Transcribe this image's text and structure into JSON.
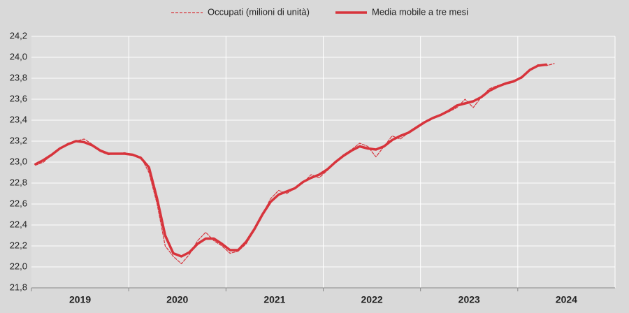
{
  "chart_data": {
    "type": "line",
    "categories": [
      "2019",
      "2020",
      "2021",
      "2022",
      "2023",
      "2024"
    ],
    "xlim": [
      2019,
      2025
    ],
    "ylim": [
      21.8,
      24.2
    ],
    "yticks": [
      {
        "value": 21.8,
        "label": "21,8"
      },
      {
        "value": 22.0,
        "label": "22,0"
      },
      {
        "value": 22.2,
        "label": "22,2"
      },
      {
        "value": 22.4,
        "label": "22,4"
      },
      {
        "value": 22.6,
        "label": "22,6"
      },
      {
        "value": 22.8,
        "label": "22,8"
      },
      {
        "value": 23.0,
        "label": "23,0"
      },
      {
        "value": 23.2,
        "label": "23,2"
      },
      {
        "value": 23.4,
        "label": "23,4"
      },
      {
        "value": 23.6,
        "label": "23,6"
      },
      {
        "value": 23.8,
        "label": "23,8"
      },
      {
        "value": 24.0,
        "label": "24,0"
      },
      {
        "value": 24.2,
        "label": "24,2"
      }
    ],
    "grid": true,
    "x": [
      2019.042,
      2019.125,
      2019.208,
      2019.292,
      2019.375,
      2019.458,
      2019.542,
      2019.625,
      2019.708,
      2019.792,
      2019.875,
      2019.958,
      2020.042,
      2020.125,
      2020.208,
      2020.292,
      2020.375,
      2020.458,
      2020.542,
      2020.625,
      2020.708,
      2020.792,
      2020.875,
      2020.958,
      2021.042,
      2021.125,
      2021.208,
      2021.292,
      2021.375,
      2021.458,
      2021.542,
      2021.625,
      2021.708,
      2021.792,
      2021.875,
      2021.958,
      2022.042,
      2022.125,
      2022.208,
      2022.292,
      2022.375,
      2022.458,
      2022.542,
      2022.625,
      2022.708,
      2022.792,
      2022.875,
      2022.958,
      2023.042,
      2023.125,
      2023.208,
      2023.292,
      2023.375,
      2023.458,
      2023.542,
      2023.625,
      2023.708,
      2023.792,
      2023.875,
      2023.958,
      2024.042,
      2024.125,
      2024.208,
      2024.292,
      2024.375
    ],
    "series": [
      {
        "name": "Occupati (milioni di unità)",
        "color": "#d7343c",
        "style": "dashed",
        "values": [
          22.97,
          23.0,
          23.07,
          23.13,
          23.18,
          23.2,
          23.22,
          23.17,
          23.1,
          23.07,
          23.08,
          23.09,
          23.07,
          23.05,
          22.9,
          22.6,
          22.2,
          22.1,
          22.03,
          22.12,
          22.25,
          22.33,
          22.25,
          22.2,
          22.13,
          22.15,
          22.22,
          22.35,
          22.5,
          22.65,
          22.73,
          22.7,
          22.75,
          22.8,
          22.88,
          22.85,
          22.92,
          23.0,
          23.07,
          23.12,
          23.18,
          23.15,
          23.05,
          23.15,
          23.25,
          23.22,
          23.28,
          23.32,
          23.38,
          23.42,
          23.45,
          23.48,
          23.52,
          23.6,
          23.52,
          23.62,
          23.7,
          23.73,
          23.74,
          23.78,
          23.8,
          23.88,
          23.93,
          23.92,
          23.94
        ]
      },
      {
        "name": "Media mobile a tre mesi",
        "color": "#d7343c",
        "style": "solid",
        "values": [
          22.98,
          23.02,
          23.07,
          23.13,
          23.17,
          23.2,
          23.19,
          23.16,
          23.11,
          23.08,
          23.08,
          23.08,
          23.07,
          23.04,
          22.95,
          22.65,
          22.3,
          22.13,
          22.1,
          22.14,
          22.22,
          22.27,
          22.27,
          22.22,
          22.16,
          22.16,
          22.24,
          22.36,
          22.5,
          22.62,
          22.69,
          22.72,
          22.75,
          22.81,
          22.85,
          22.88,
          22.93,
          23.0,
          23.06,
          23.11,
          23.15,
          23.13,
          23.12,
          23.15,
          23.21,
          23.25,
          23.28,
          23.33,
          23.38,
          23.42,
          23.45,
          23.49,
          23.54,
          23.56,
          23.58,
          23.62,
          23.68,
          23.72,
          23.75,
          23.77,
          23.81,
          23.88,
          23.92,
          23.93,
          null
        ]
      }
    ]
  }
}
